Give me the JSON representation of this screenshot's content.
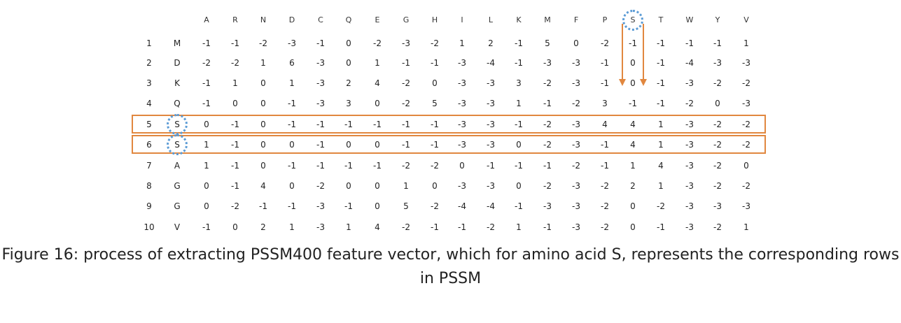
{
  "matrix": {
    "columns": [
      "A",
      "R",
      "N",
      "D",
      "C",
      "Q",
      "E",
      "G",
      "H",
      "I",
      "L",
      "K",
      "M",
      "F",
      "P",
      "S",
      "T",
      "W",
      "Y",
      "V"
    ],
    "rows": [
      {
        "index": "1",
        "residue": "M",
        "values": [
          "-1",
          "-1",
          "-2",
          "-3",
          "-1",
          "0",
          "-2",
          "-3",
          "-2",
          "1",
          "2",
          "-1",
          "5",
          "0",
          "-2",
          "-1",
          "-1",
          "-1",
          "-1",
          "1"
        ]
      },
      {
        "index": "2",
        "residue": "D",
        "values": [
          "-2",
          "-2",
          "1",
          "6",
          "-3",
          "0",
          "1",
          "-1",
          "-1",
          "-3",
          "-4",
          "-1",
          "-3",
          "-3",
          "-1",
          "0",
          "-1",
          "-4",
          "-3",
          "-3"
        ]
      },
      {
        "index": "3",
        "residue": "K",
        "values": [
          "-1",
          "1",
          "0",
          "1",
          "-3",
          "2",
          "4",
          "-2",
          "0",
          "-3",
          "-3",
          "3",
          "-2",
          "-3",
          "-1",
          "0",
          "-1",
          "-3",
          "-2",
          "-2"
        ]
      },
      {
        "index": "4",
        "residue": "Q",
        "values": [
          "-1",
          "0",
          "0",
          "-1",
          "-3",
          "3",
          "0",
          "-2",
          "5",
          "-3",
          "-3",
          "1",
          "-1",
          "-2",
          "3",
          "-1",
          "-1",
          "-2",
          "0",
          "-3"
        ]
      },
      {
        "index": "5",
        "residue": "S",
        "values": [
          "0",
          "-1",
          "0",
          "-1",
          "-1",
          "-1",
          "-1",
          "-1",
          "-1",
          "-3",
          "-3",
          "-1",
          "-2",
          "-3",
          "4",
          "4",
          "1",
          "-3",
          "-2",
          "-2"
        ]
      },
      {
        "index": "6",
        "residue": "S",
        "values": [
          "1",
          "-1",
          "0",
          "0",
          "-1",
          "0",
          "0",
          "-1",
          "-1",
          "-3",
          "-3",
          "0",
          "-2",
          "-3",
          "-1",
          "4",
          "1",
          "-3",
          "-2",
          "-2"
        ]
      },
      {
        "index": "7",
        "residue": "A",
        "values": [
          "1",
          "-1",
          "0",
          "-1",
          "-1",
          "-1",
          "-1",
          "-2",
          "-2",
          "0",
          "-1",
          "-1",
          "-1",
          "-2",
          "-1",
          "1",
          "4",
          "-3",
          "-2",
          "0"
        ]
      },
      {
        "index": "8",
        "residue": "G",
        "values": [
          "0",
          "-1",
          "4",
          "0",
          "-2",
          "0",
          "0",
          "1",
          "0",
          "-3",
          "-3",
          "0",
          "-2",
          "-3",
          "-2",
          "2",
          "1",
          "-3",
          "-2",
          "-2"
        ]
      },
      {
        "index": "9",
        "residue": "G",
        "values": [
          "0",
          "-2",
          "-1",
          "-1",
          "-3",
          "-1",
          "0",
          "5",
          "-2",
          "-4",
          "-4",
          "-1",
          "-3",
          "-3",
          "-2",
          "0",
          "-2",
          "-3",
          "-3",
          "-3"
        ]
      },
      {
        "index": "10",
        "residue": "V",
        "values": [
          "-1",
          "0",
          "2",
          "1",
          "-3",
          "1",
          "4",
          "-2",
          "-1",
          "-1",
          "-2",
          "1",
          "-1",
          "-3",
          "-2",
          "0",
          "-1",
          "-3",
          "-2",
          "1"
        ]
      }
    ],
    "highlighted_rows": [
      5,
      6
    ],
    "highlighted_column": "S",
    "accent_color": "#e1873f",
    "circle_color": "#5b9bd5"
  },
  "caption": "Figure 16: process of extracting PSSM400 feature vector, which for amino acid S, represents the corresponding rows in PSSM"
}
